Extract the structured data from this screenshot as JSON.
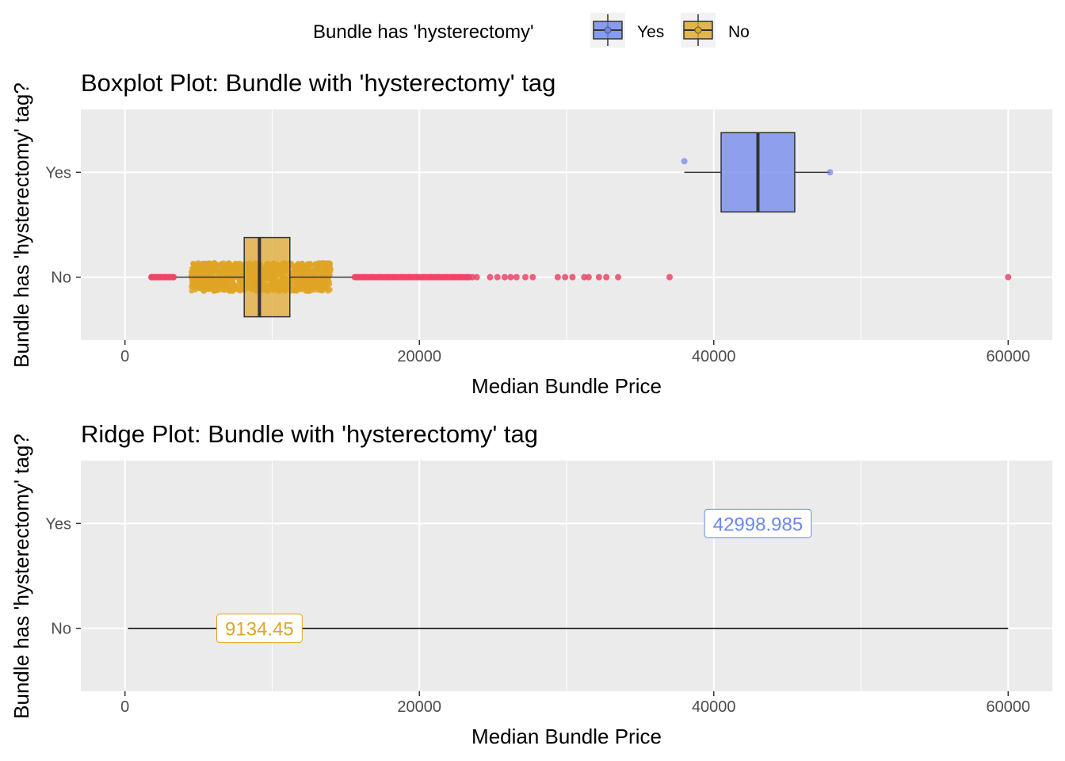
{
  "legend": {
    "title": "Bundle has 'hysterectomy'",
    "position": "top",
    "items": [
      {
        "label": "Yes",
        "color": "#6d86ee"
      },
      {
        "label": "No",
        "color": "#dfa525"
      }
    ]
  },
  "colors": {
    "yes_fill": "#6d86ee",
    "no_fill": "#dfa525",
    "outlier": "#ee4466",
    "panel_bg": "#ebebeb",
    "grid": "#ffffff"
  },
  "chart_data": [
    {
      "type": "box",
      "title": "Boxplot Plot: Bundle with 'hysterectomy' tag",
      "xlabel": "Median Bundle Price",
      "ylabel": "Bundle has 'hysterectomy' tag?",
      "xlim": [
        -3000,
        63000
      ],
      "xticks": [
        0,
        20000,
        40000,
        60000
      ],
      "categories": [
        "No",
        "Yes"
      ],
      "grid": true,
      "series": [
        {
          "name": "Yes",
          "category": "Yes",
          "q1": 40500,
          "median": 43000,
          "q3": 45500,
          "whisker_low": 38000,
          "whisker_high": 47900,
          "outliers": [
            38000,
            47900
          ]
        },
        {
          "name": "No",
          "category": "No",
          "q1": 8100,
          "median": 9134.45,
          "q3": 11200,
          "whisker_low": 3500,
          "whisker_high": 15600,
          "jitter_range": [
            4500,
            14000
          ],
          "outliers": [
            1800,
            2000,
            2200,
            2400,
            2700,
            3000,
            3300,
            15800,
            16300,
            16800,
            17300,
            17800,
            18300,
            18800,
            19300,
            19800,
            20300,
            20800,
            21300,
            21800,
            22300,
            22800,
            23300,
            23600,
            23900,
            24800,
            25300,
            25800,
            26200,
            26600,
            27200,
            27700,
            29400,
            29900,
            30400,
            31200,
            31500,
            32200,
            32700,
            33500,
            37000,
            60000
          ]
        }
      ]
    },
    {
      "type": "ridge",
      "title": "Ridge Plot: Bundle with 'hysterectomy' tag",
      "xlabel": "Median Bundle Price",
      "ylabel": "Bundle has 'hysterectomy' tag?",
      "xlim": [
        -3000,
        63000
      ],
      "xticks": [
        0,
        20000,
        40000,
        60000
      ],
      "categories": [
        "No",
        "Yes"
      ],
      "grid": true,
      "baseline": {
        "category": "No",
        "from": 200,
        "to": 60000
      },
      "labels": [
        {
          "category": "Yes",
          "x": 42998.985,
          "text": "42998.985",
          "color": "#6d86ee"
        },
        {
          "category": "No",
          "x": 9134.45,
          "text": "9134.45",
          "color": "#dfa525"
        }
      ]
    }
  ]
}
